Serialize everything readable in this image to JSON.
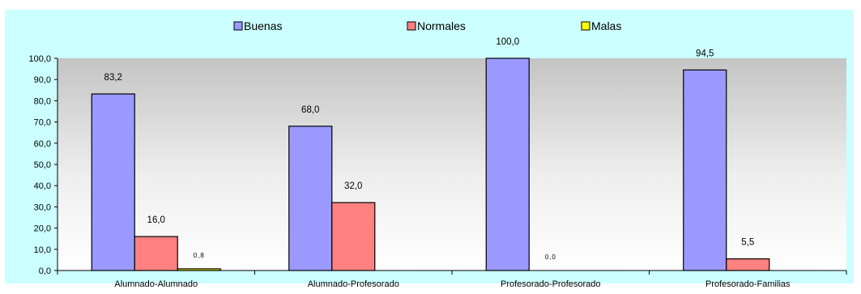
{
  "chart_data": {
    "type": "bar",
    "title": "",
    "xlabel": "",
    "ylabel": "",
    "ylim": [
      0,
      100
    ],
    "ytick_step": 10,
    "ytick_labels": [
      "0,0",
      "10,0",
      "20,0",
      "30,0",
      "40,0",
      "50,0",
      "60,0",
      "70,0",
      "80,0",
      "90,0",
      "100,0"
    ],
    "grid": false,
    "legend_position": "top",
    "categories": [
      "Alumnado-Alumnado",
      "Alumnado-Profesorado",
      "Profesorado-Profesorado",
      "Profesorado-Familias"
    ],
    "series": [
      {
        "name": "Buenas",
        "color": "#9999ff",
        "values": [
          83.2,
          68.0,
          100.0,
          94.5
        ],
        "labels": [
          "83,2",
          "68,0",
          "100,0",
          "94,5"
        ]
      },
      {
        "name": "Normales",
        "color": "#ff8080",
        "values": [
          16.0,
          32.0,
          0.0,
          5.5
        ],
        "labels": [
          "16,0",
          "32,0",
          "0,0",
          "5,5"
        ]
      },
      {
        "name": "Malas",
        "color": "#ffff00",
        "values": [
          0.8,
          null,
          null,
          null
        ],
        "labels": [
          "0,8",
          null,
          null,
          null
        ]
      }
    ]
  }
}
